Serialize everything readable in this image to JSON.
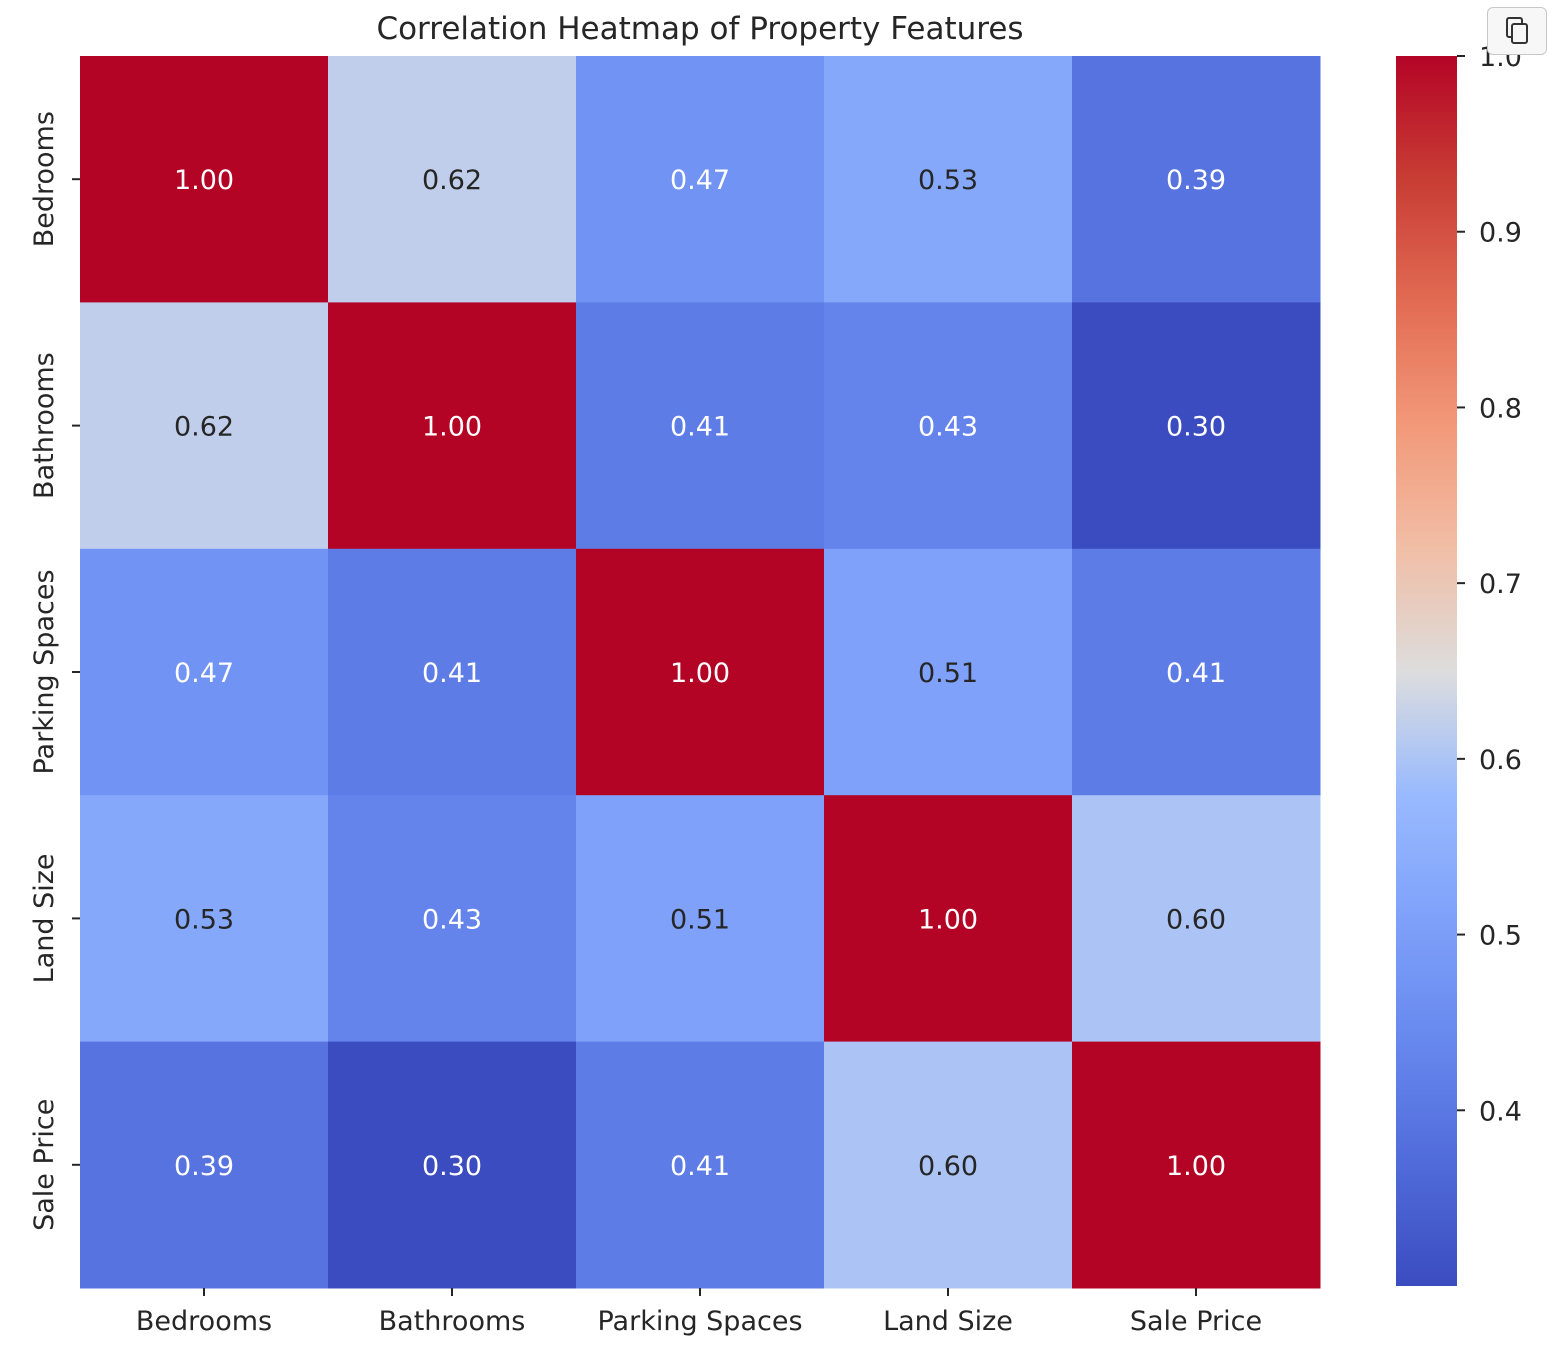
{
  "toolbar": {
    "copy_icon": "copy-icon"
  },
  "chart_data": {
    "type": "heatmap",
    "title": "Correlation Heatmap of Property Features",
    "xlabel": "",
    "ylabel": "",
    "colormap": "coolwarm",
    "categories_x": [
      "Bedrooms",
      "Bathrooms",
      "Parking Spaces",
      "Land Size",
      "Sale Price"
    ],
    "categories_y": [
      "Bedrooms",
      "Bathrooms",
      "Parking Spaces",
      "Land Size",
      "Sale Price"
    ],
    "values": [
      [
        1.0,
        0.62,
        0.47,
        0.53,
        0.39
      ],
      [
        0.62,
        1.0,
        0.41,
        0.43,
        0.3
      ],
      [
        0.47,
        0.41,
        1.0,
        0.51,
        0.41
      ],
      [
        0.53,
        0.43,
        0.51,
        1.0,
        0.6
      ],
      [
        0.39,
        0.3,
        0.41,
        0.6,
        1.0
      ]
    ],
    "annotation_format": "0.00",
    "colorbar": {
      "vmin": 0.3,
      "vmax": 1.0,
      "ticks": [
        0.4,
        0.5,
        0.6,
        0.7,
        0.8,
        0.9,
        1.0
      ],
      "tick_labels": [
        "0.4",
        "0.5",
        "0.6",
        "0.7",
        "0.8",
        "0.9",
        "1.0"
      ]
    }
  }
}
